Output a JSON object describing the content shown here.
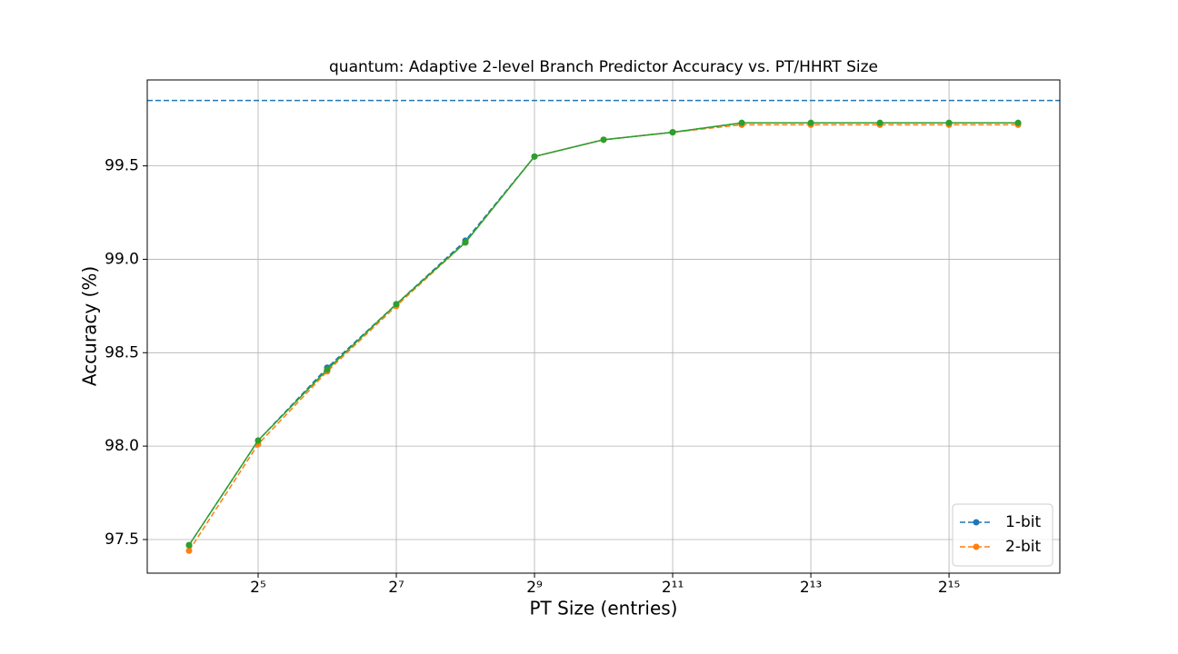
{
  "chart_data": {
    "type": "line",
    "title": "quantum: Adaptive 2-level Branch Predictor Accuracy vs. PT/HHRT Size",
    "x_label": "PT Size (entries)",
    "y_label": "Accuracy (%)",
    "x_scale": "log2",
    "x": [
      16,
      32,
      64,
      128,
      256,
      512,
      1024,
      2048,
      4096,
      8192,
      16384,
      32768,
      65536
    ],
    "series": [
      {
        "name": "1-bit",
        "color": "#1f77b4",
        "linestyle": "dashed",
        "values": [
          97.47,
          98.03,
          98.42,
          98.76,
          99.1,
          99.55,
          99.64,
          99.68,
          99.73,
          99.73,
          99.73,
          99.73,
          99.73
        ]
      },
      {
        "name": "2-bit",
        "color": "#ff7f0e",
        "linestyle": "dashed",
        "values": [
          97.44,
          98.01,
          98.4,
          98.75,
          99.09,
          99.55,
          99.64,
          99.68,
          99.72,
          99.72,
          99.72,
          99.72,
          99.72
        ]
      },
      {
        "color": "#2ca02c",
        "linestyle": "solid",
        "values": [
          97.47,
          98.03,
          98.41,
          98.76,
          99.09,
          99.55,
          99.64,
          99.68,
          99.73,
          99.73,
          99.73,
          99.73,
          99.73
        ]
      }
    ],
    "reference_line": {
      "value": 99.85,
      "color": "#1f77b4",
      "linestyle": "dashed"
    },
    "xlim": [
      10.52,
      99600
    ],
    "xticks": [
      {
        "value": 32,
        "label": "2⁵"
      },
      {
        "value": 128,
        "label": "2⁷"
      },
      {
        "value": 512,
        "label": "2⁹"
      },
      {
        "value": 2048,
        "label": "2¹¹"
      },
      {
        "value": 8192,
        "label": "2¹³"
      },
      {
        "value": 32768,
        "label": "2¹⁵"
      }
    ],
    "ylim": [
      97.32,
      99.96
    ],
    "yticks": [
      97.5,
      {
        "value": 98,
        "label": "98.0"
      },
      98.5,
      {
        "value": 99,
        "label": "99.0"
      },
      99.5
    ],
    "grid": true,
    "legend": "lower right"
  }
}
